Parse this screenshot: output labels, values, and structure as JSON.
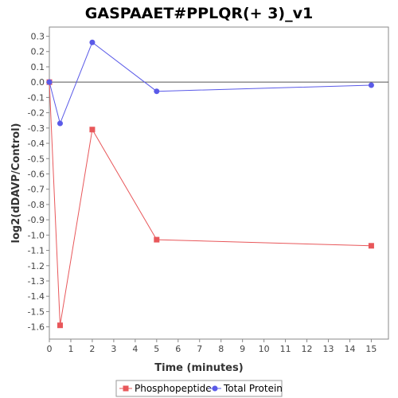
{
  "chart_data": {
    "type": "line",
    "title": "GASPAAET#PPLQR(+ 3)_v1",
    "xlabel": "Time (minutes)",
    "ylabel": "log2(dDAVP/Control)",
    "xlim": [
      0,
      15.8
    ],
    "ylim": [
      -1.68,
      0.36
    ],
    "xticks": [
      0,
      1,
      2,
      3,
      4,
      5,
      6,
      7,
      8,
      9,
      10,
      11,
      12,
      13,
      14,
      15
    ],
    "yticks": [
      0.3,
      0.2,
      0.1,
      0.0,
      -0.1,
      -0.2,
      -0.3,
      -0.4,
      -0.5,
      -0.6,
      -0.7,
      -0.8,
      -0.9,
      -1.0,
      -1.1,
      -1.2,
      -1.3,
      -1.4,
      -1.5,
      -1.6
    ],
    "ytick_labels": [
      "0.3",
      "0.2",
      "0.1",
      "0.0",
      "-0.1",
      "-0.2",
      "-0.3",
      "-0.4",
      "-0.5",
      "-0.6",
      "-0.7",
      "-0.8",
      "-0.9",
      "-1.0",
      "-1.1",
      "-1.2",
      "-1.3",
      "-1.4",
      "-1.5",
      "-1.6"
    ],
    "grid": false,
    "legend_position": "bottom",
    "series": [
      {
        "name": "Phosphopeptide",
        "color": "#e8575a",
        "marker": "square",
        "x": [
          0,
          0.5,
          2,
          5,
          15
        ],
        "y": [
          0.0,
          -1.59,
          -0.31,
          -1.03,
          -1.07
        ]
      },
      {
        "name": "Total Protein",
        "color": "#5a5ae8",
        "marker": "circle",
        "x": [
          0,
          0.5,
          2,
          5,
          15
        ],
        "y": [
          0.0,
          -0.27,
          0.26,
          -0.06,
          -0.02
        ]
      }
    ]
  }
}
